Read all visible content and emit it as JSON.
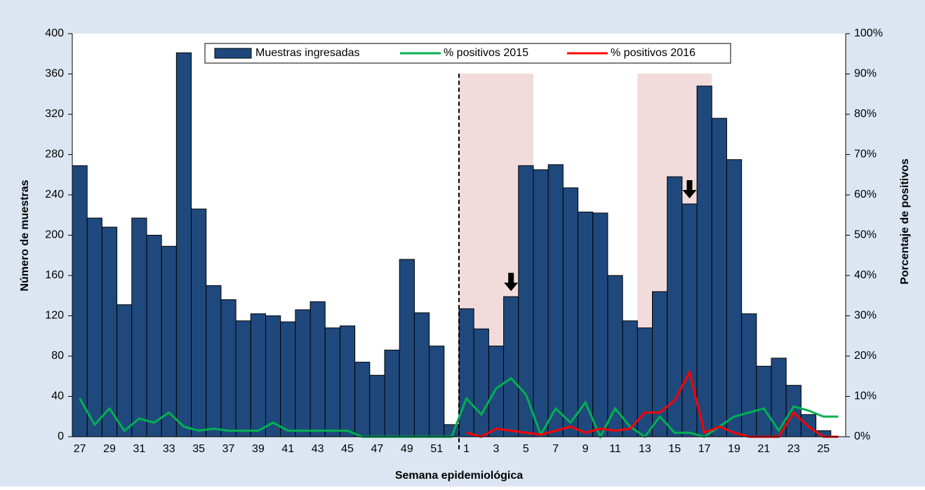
{
  "chart_data": {
    "type": "bar",
    "x_label": "Semana epidemiológica",
    "y_label": "Número de muestras",
    "y2_label": "Porcentaje de positivos",
    "categories": [
      27,
      null,
      29,
      null,
      31,
      null,
      33,
      null,
      35,
      null,
      37,
      null,
      39,
      null,
      41,
      null,
      43,
      null,
      45,
      null,
      47,
      null,
      49,
      null,
      51,
      null,
      1,
      null,
      3,
      null,
      5,
      null,
      7,
      null,
      9,
      null,
      11,
      null,
      13,
      null,
      15,
      null,
      17,
      null,
      19,
      null,
      21,
      null,
      23,
      null,
      25,
      null
    ],
    "series": [
      {
        "name": "Muestras ingresadas",
        "type": "bar",
        "color": "#1f497d",
        "values": [
          269,
          217,
          208,
          131,
          217,
          200,
          189,
          381,
          226,
          150,
          136,
          115,
          122,
          120,
          114,
          126,
          134,
          108,
          110,
          74,
          61,
          86,
          176,
          123,
          90,
          12,
          127,
          107,
          90,
          139,
          269,
          265,
          270,
          247,
          223,
          222,
          160,
          115,
          108,
          144,
          258,
          231,
          348,
          316,
          275,
          122,
          70,
          78,
          51,
          22,
          6,
          0
        ]
      },
      {
        "name": "% positivos 2015",
        "type": "line",
        "axis": "y2",
        "color": "#00b050",
        "values": [
          9.5,
          3,
          7,
          1.5,
          4.5,
          3.5,
          6,
          2.5,
          1.5,
          2,
          1.5,
          1.5,
          1.5,
          3.5,
          1.5,
          1.5,
          1.5,
          1.5,
          1.5,
          0,
          0,
          0,
          0,
          0,
          0,
          0,
          9.5,
          5.5,
          12,
          14.5,
          10.5,
          0.5,
          7,
          3.5,
          8.5,
          0,
          7,
          2.5,
          0,
          5,
          1,
          1,
          0,
          2.5,
          5,
          6,
          7,
          1.5,
          7.5,
          6.5,
          5,
          5
        ]
      },
      {
        "name": "% positivos 2016",
        "type": "line",
        "axis": "y2",
        "color": "#ff0000",
        "values": [
          null,
          null,
          null,
          null,
          null,
          null,
          null,
          null,
          null,
          null,
          null,
          null,
          null,
          null,
          null,
          null,
          null,
          null,
          null,
          null,
          null,
          null,
          null,
          null,
          null,
          null,
          1,
          0,
          2,
          1.5,
          1,
          0.5,
          1.5,
          2.5,
          1,
          2,
          1.5,
          2,
          6,
          6,
          9,
          16,
          1,
          2.5,
          1,
          0,
          0,
          0,
          6,
          2.5,
          0,
          0
        ]
      }
    ],
    "ylim": [
      0,
      400
    ],
    "yticks": [
      0,
      40,
      80,
      120,
      160,
      200,
      240,
      280,
      320,
      360,
      400
    ],
    "y2lim": [
      0,
      100
    ],
    "y2ticks": [
      {
        "value": 0,
        "label": "0%"
      },
      {
        "value": 10,
        "label": "10%"
      },
      {
        "value": 20,
        "label": "20%"
      },
      {
        "value": 30,
        "label": "30%"
      },
      {
        "value": 40,
        "label": "40%"
      },
      {
        "value": 50,
        "label": "50%"
      },
      {
        "value": 60,
        "label": "60%"
      },
      {
        "value": 70,
        "label": "70%"
      },
      {
        "value": 80,
        "label": "80%"
      },
      {
        "value": 90,
        "label": "90%"
      },
      {
        "value": 100,
        "label": "100%"
      }
    ],
    "legend": "top"
  }
}
